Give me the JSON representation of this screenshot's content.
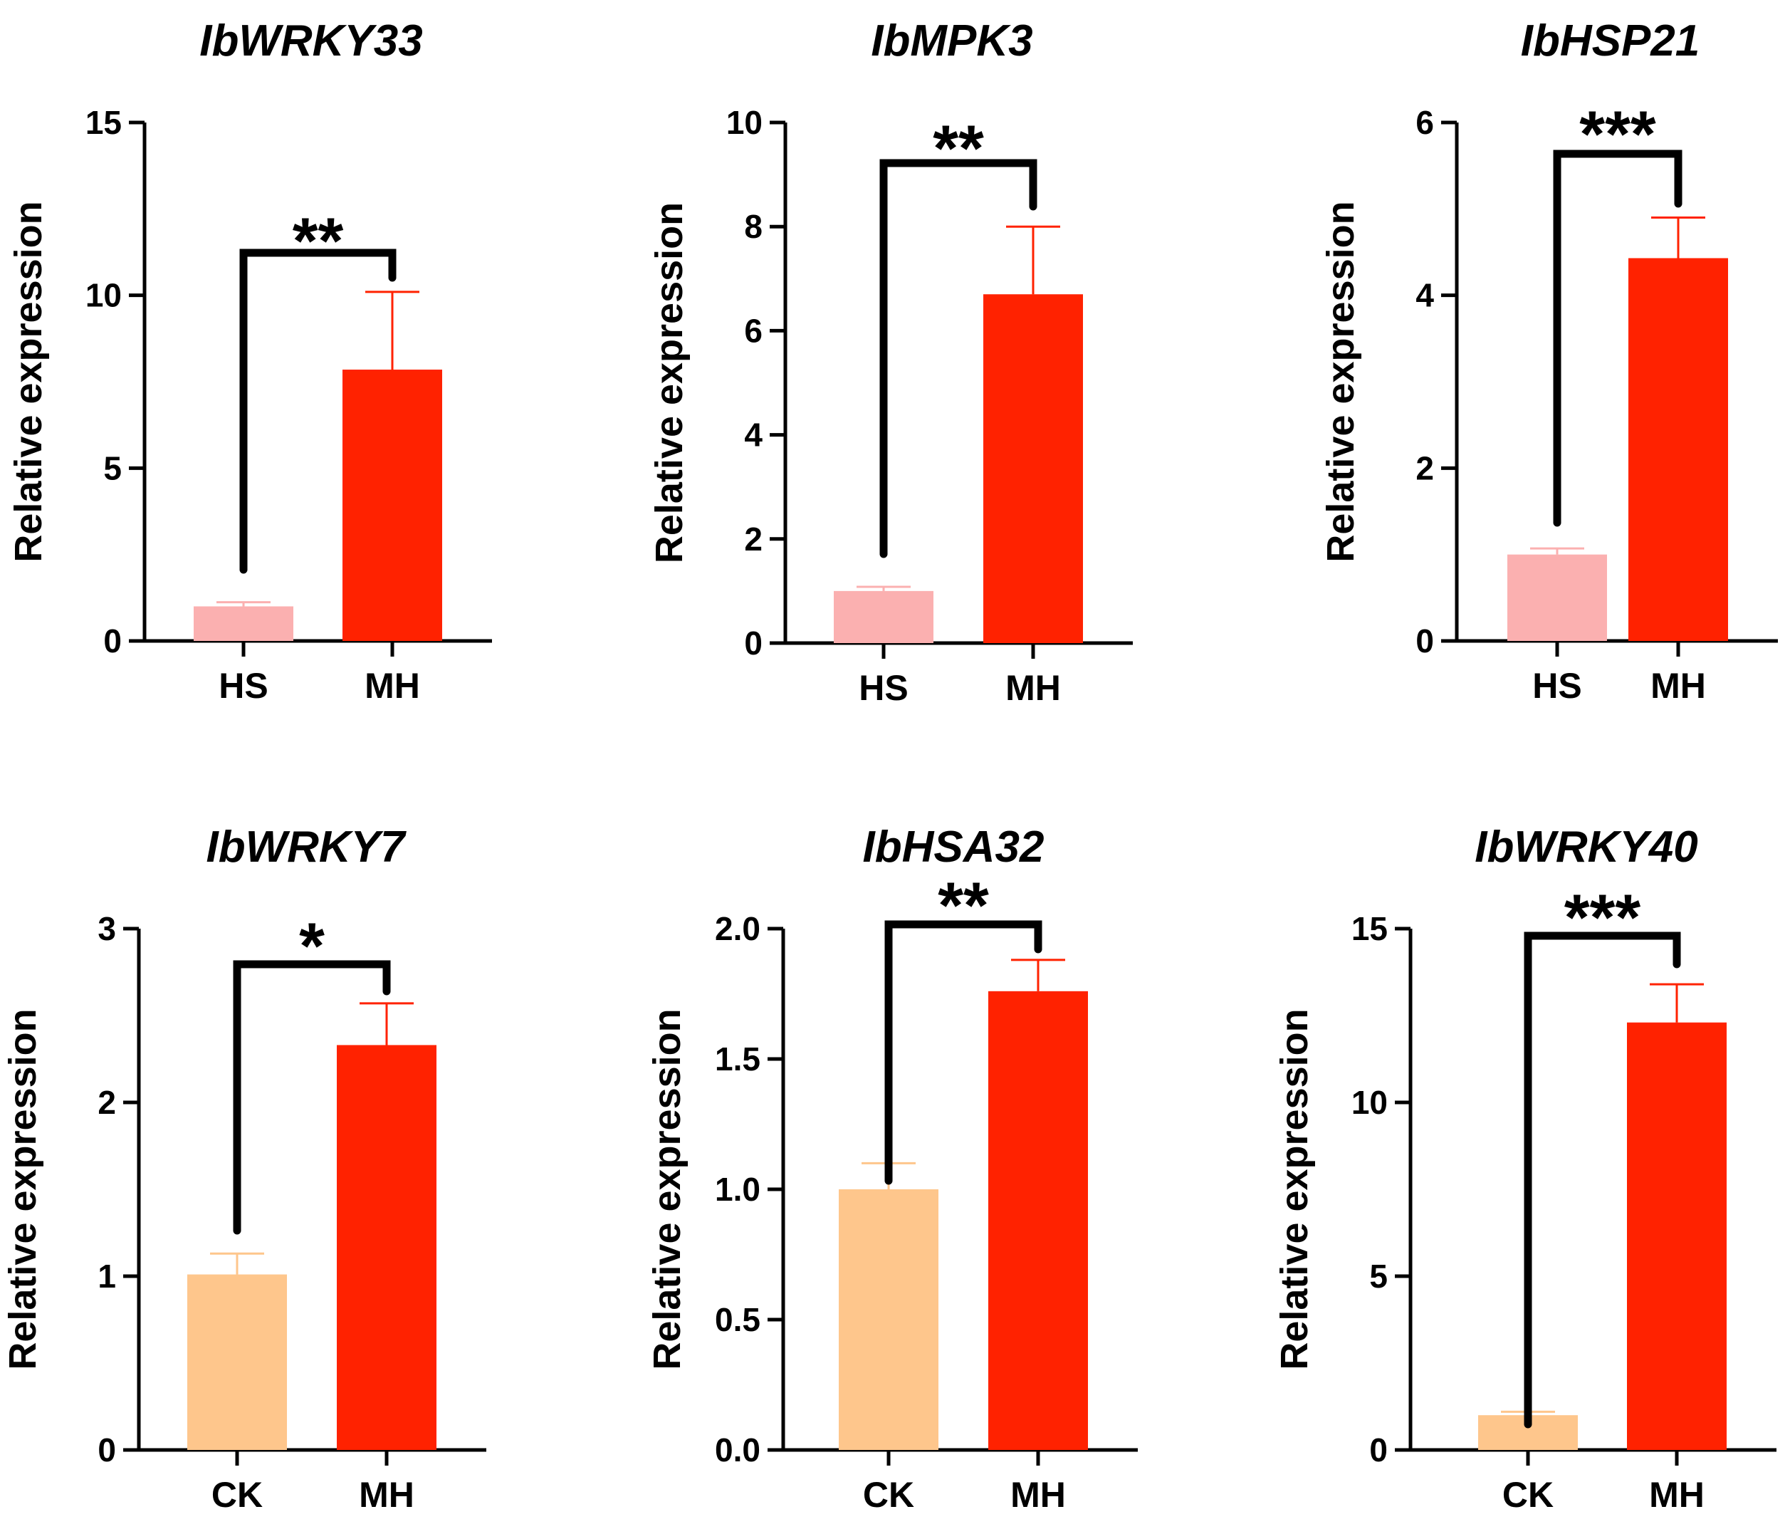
{
  "figure": {
    "rows": 2,
    "cols": 3
  },
  "colors": {
    "axis": "#000000",
    "bracket": "#000000",
    "error_bar": "#ff2200"
  },
  "chart_data": [
    {
      "type": "bar",
      "title": "IbWRKY33",
      "xlabel": "",
      "ylabel": "Relative expression",
      "categories": [
        "HS",
        "MH"
      ],
      "values": [
        1.0,
        7.85
      ],
      "errors": [
        0.12,
        2.25
      ],
      "colors": [
        "#fbb0b0",
        "#ff2200"
      ],
      "ylim": [
        0,
        15
      ],
      "yticks": [
        0,
        5,
        10,
        15
      ],
      "ytick_labels": [
        "0",
        "5",
        "10",
        "15"
      ],
      "significance": "**",
      "grid": false
    },
    {
      "type": "bar",
      "title": "IbMPK3",
      "xlabel": "",
      "ylabel": "Relative expression",
      "categories": [
        "HS",
        "MH"
      ],
      "values": [
        1.0,
        6.7
      ],
      "errors": [
        0.08,
        1.3
      ],
      "colors": [
        "#fbb0b0",
        "#ff2200"
      ],
      "ylim": [
        0,
        10
      ],
      "yticks": [
        0,
        2,
        4,
        6,
        8,
        10
      ],
      "ytick_labels": [
        "0",
        "2",
        "4",
        "6",
        "8",
        "10"
      ],
      "significance": "**",
      "grid": false
    },
    {
      "type": "bar",
      "title": "IbHSP21",
      "xlabel": "",
      "ylabel": "Relative expression",
      "categories": [
        "HS",
        "MH"
      ],
      "values": [
        1.0,
        4.43
      ],
      "errors": [
        0.07,
        0.47
      ],
      "colors": [
        "#fbb0b0",
        "#ff2200"
      ],
      "ylim": [
        0,
        6
      ],
      "yticks": [
        0,
        2,
        4,
        6
      ],
      "ytick_labels": [
        "0",
        "2",
        "4",
        "6"
      ],
      "significance": "***",
      "grid": false
    },
    {
      "type": "bar",
      "title": "IbWRKY7",
      "xlabel": "",
      "ylabel": "Relative expression",
      "categories": [
        "CK",
        "MH"
      ],
      "values": [
        1.01,
        2.33
      ],
      "errors": [
        0.12,
        0.24
      ],
      "colors": [
        "#fec68c",
        "#ff2200"
      ],
      "ylim": [
        0,
        3
      ],
      "yticks": [
        0,
        1,
        2,
        3
      ],
      "ytick_labels": [
        "0",
        "1",
        "2",
        "3"
      ],
      "significance": "*",
      "grid": false
    },
    {
      "type": "bar",
      "title": "IbHSA32",
      "xlabel": "",
      "ylabel": "Relative expression",
      "categories": [
        "CK",
        "MH"
      ],
      "values": [
        1.0,
        1.76
      ],
      "errors": [
        0.1,
        0.12
      ],
      "colors": [
        "#fec68c",
        "#ff2200"
      ],
      "ylim": [
        0,
        2.0
      ],
      "yticks": [
        0,
        0.5,
        1.0,
        1.5,
        2.0
      ],
      "ytick_labels": [
        "0.0",
        "0.5",
        "1.0",
        "1.5",
        "2.0"
      ],
      "significance": "**",
      "grid": false
    },
    {
      "type": "bar",
      "title": "IbWRKY40",
      "xlabel": "",
      "ylabel": "Relative expression",
      "categories": [
        "CK",
        "MH"
      ],
      "values": [
        1.0,
        12.3
      ],
      "errors": [
        0.1,
        1.1
      ],
      "colors": [
        "#fec68c",
        "#ff2200"
      ],
      "ylim": [
        0,
        15
      ],
      "yticks": [
        0,
        5,
        10,
        15
      ],
      "ytick_labels": [
        "0",
        "5",
        "10",
        "15"
      ],
      "significance": "***",
      "grid": false
    }
  ]
}
